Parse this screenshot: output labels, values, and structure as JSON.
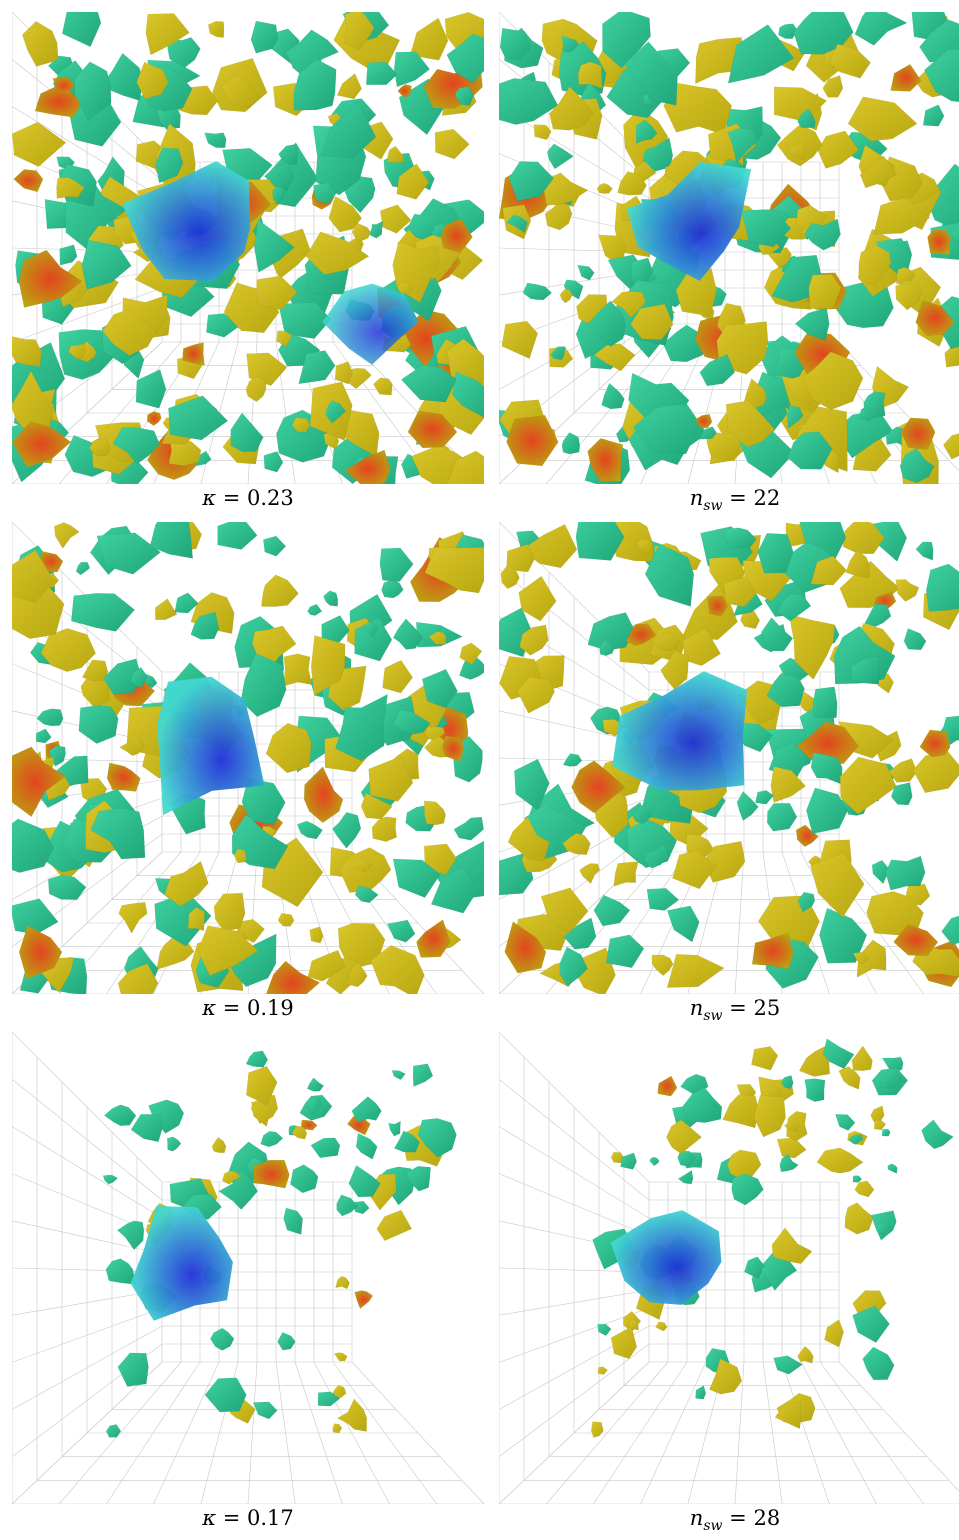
{
  "panels": [
    {
      "id": "k023",
      "symbol": "κ",
      "sub": "",
      "value": "0.23",
      "density": 0.95,
      "blob": "upper-left-large"
    },
    {
      "id": "n22",
      "symbol": "n",
      "sub": "sw",
      "value": "22",
      "density": 0.95,
      "blob": "upper-left-large"
    },
    {
      "id": "k019",
      "symbol": "κ",
      "sub": "",
      "value": "0.19",
      "density": 0.75,
      "blob": "upper-left-large"
    },
    {
      "id": "n25",
      "symbol": "n",
      "sub": "sw",
      "value": "25",
      "density": 0.75,
      "blob": "upper-left-large"
    },
    {
      "id": "k017",
      "symbol": "κ",
      "sub": "",
      "value": "0.17",
      "density": 0.3,
      "blob": "upper-left-medium"
    },
    {
      "id": "n28",
      "symbol": "n",
      "sub": "sw",
      "value": "28",
      "density": 0.35,
      "blob": "upper-left-medium"
    }
  ],
  "colors": {
    "green": "#1fa67a",
    "greenLight": "#3fd2a0",
    "yellow": "#b8a710",
    "yellowLight": "#d9c62a",
    "red": "#e4441f",
    "cyan": "#42d8d0",
    "blue": "#1f2fd8",
    "grid": "#c8c8c8"
  }
}
